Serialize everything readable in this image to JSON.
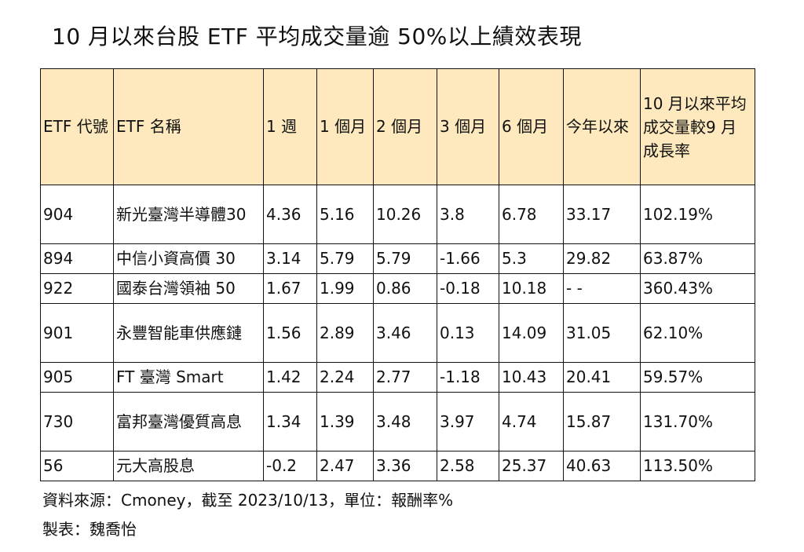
{
  "title": "10 月以來台股 ETF 平均成交量逾 50%以上績效表現",
  "table": {
    "headers": {
      "code": "ETF 代號",
      "name": "ETF 名稱",
      "w1": "1 週",
      "m1": "1 個月",
      "m2": "2 個月",
      "m3": "3 個月",
      "m6": "6 個月",
      "ytd": "今年以來",
      "growth": "10 月以來平均成交量較9 月成長率"
    },
    "header_background": "#fde9bd",
    "rows": [
      {
        "code": "904",
        "name": "新光臺灣半導體30",
        "w1": "4.36",
        "m1": "5.16",
        "m2": "10.26",
        "m3": "3.8",
        "m6": "6.78",
        "ytd": "33.17",
        "growth": "102.19%"
      },
      {
        "code": "894",
        "name": "中信小資高價 30",
        "w1": "3.14",
        "m1": "5.79",
        "m2": "5.79",
        "m3": "-1.66",
        "m6": "5.3",
        "ytd": "29.82",
        "growth": "63.87%"
      },
      {
        "code": "922",
        "name": "國泰台灣領袖 50",
        "w1": "1.67",
        "m1": "1.99",
        "m2": "0.86",
        "m3": "-0.18",
        "m6": "10.18",
        "ytd": "- -",
        "growth": "360.43%"
      },
      {
        "code": "901",
        "name": "永豐智能車供應鏈",
        "w1": "1.56",
        "m1": "2.89",
        "m2": "3.46",
        "m3": "0.13",
        "m6": "14.09",
        "ytd": "31.05",
        "growth": "62.10%"
      },
      {
        "code": "905",
        "name": "FT 臺灣 Smart",
        "w1": "1.42",
        "m1": "2.24",
        "m2": "2.77",
        "m3": "-1.18",
        "m6": "10.43",
        "ytd": "20.41",
        "growth": "59.57%"
      },
      {
        "code": "730",
        "name": "富邦臺灣優質高息",
        "w1": "1.34",
        "m1": "1.39",
        "m2": "3.48",
        "m3": "3.97",
        "m6": "4.74",
        "ytd": "15.87",
        "growth": "131.70%"
      },
      {
        "code": "56",
        "name": "元大高股息",
        "w1": "-0.2",
        "m1": "2.47",
        "m2": "3.36",
        "m3": "2.58",
        "m6": "25.37",
        "ytd": "40.63",
        "growth": "113.50%"
      }
    ]
  },
  "source": "資料來源：Cmoney，截至 2023/10/13，單位：報酬率%",
  "maker": "製表：魏喬怡"
}
